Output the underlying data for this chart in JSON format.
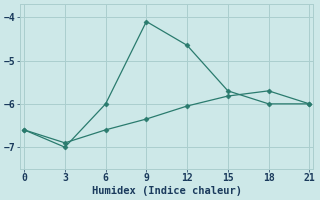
{
  "line1_x": [
    0,
    3,
    6,
    9,
    12,
    15,
    18,
    21
  ],
  "line1_y": [
    -6.6,
    -7.0,
    -6.0,
    -4.1,
    -4.65,
    -5.7,
    -6.0,
    -6.0
  ],
  "line2_x": [
    0,
    3,
    6,
    9,
    12,
    15,
    18,
    21
  ],
  "line2_y": [
    -6.6,
    -6.9,
    -6.6,
    -6.35,
    -6.05,
    -5.82,
    -5.7,
    -6.0
  ],
  "line_color": "#2a7b6e",
  "bg_color": "#cde8e8",
  "grid_color": "#aacece",
  "xlabel": "Humidex (Indice chaleur)",
  "ylim": [
    -7.5,
    -3.7
  ],
  "xlim": [
    -0.3,
    21.3
  ],
  "xticks": [
    0,
    3,
    6,
    9,
    12,
    15,
    18,
    21
  ],
  "yticks": [
    -7,
    -6,
    -5,
    -4
  ],
  "marker": "D",
  "markersize": 2.5,
  "linewidth": 0.9,
  "font_color": "#1a3a5c",
  "tick_fontsize": 7,
  "xlabel_fontsize": 7.5
}
